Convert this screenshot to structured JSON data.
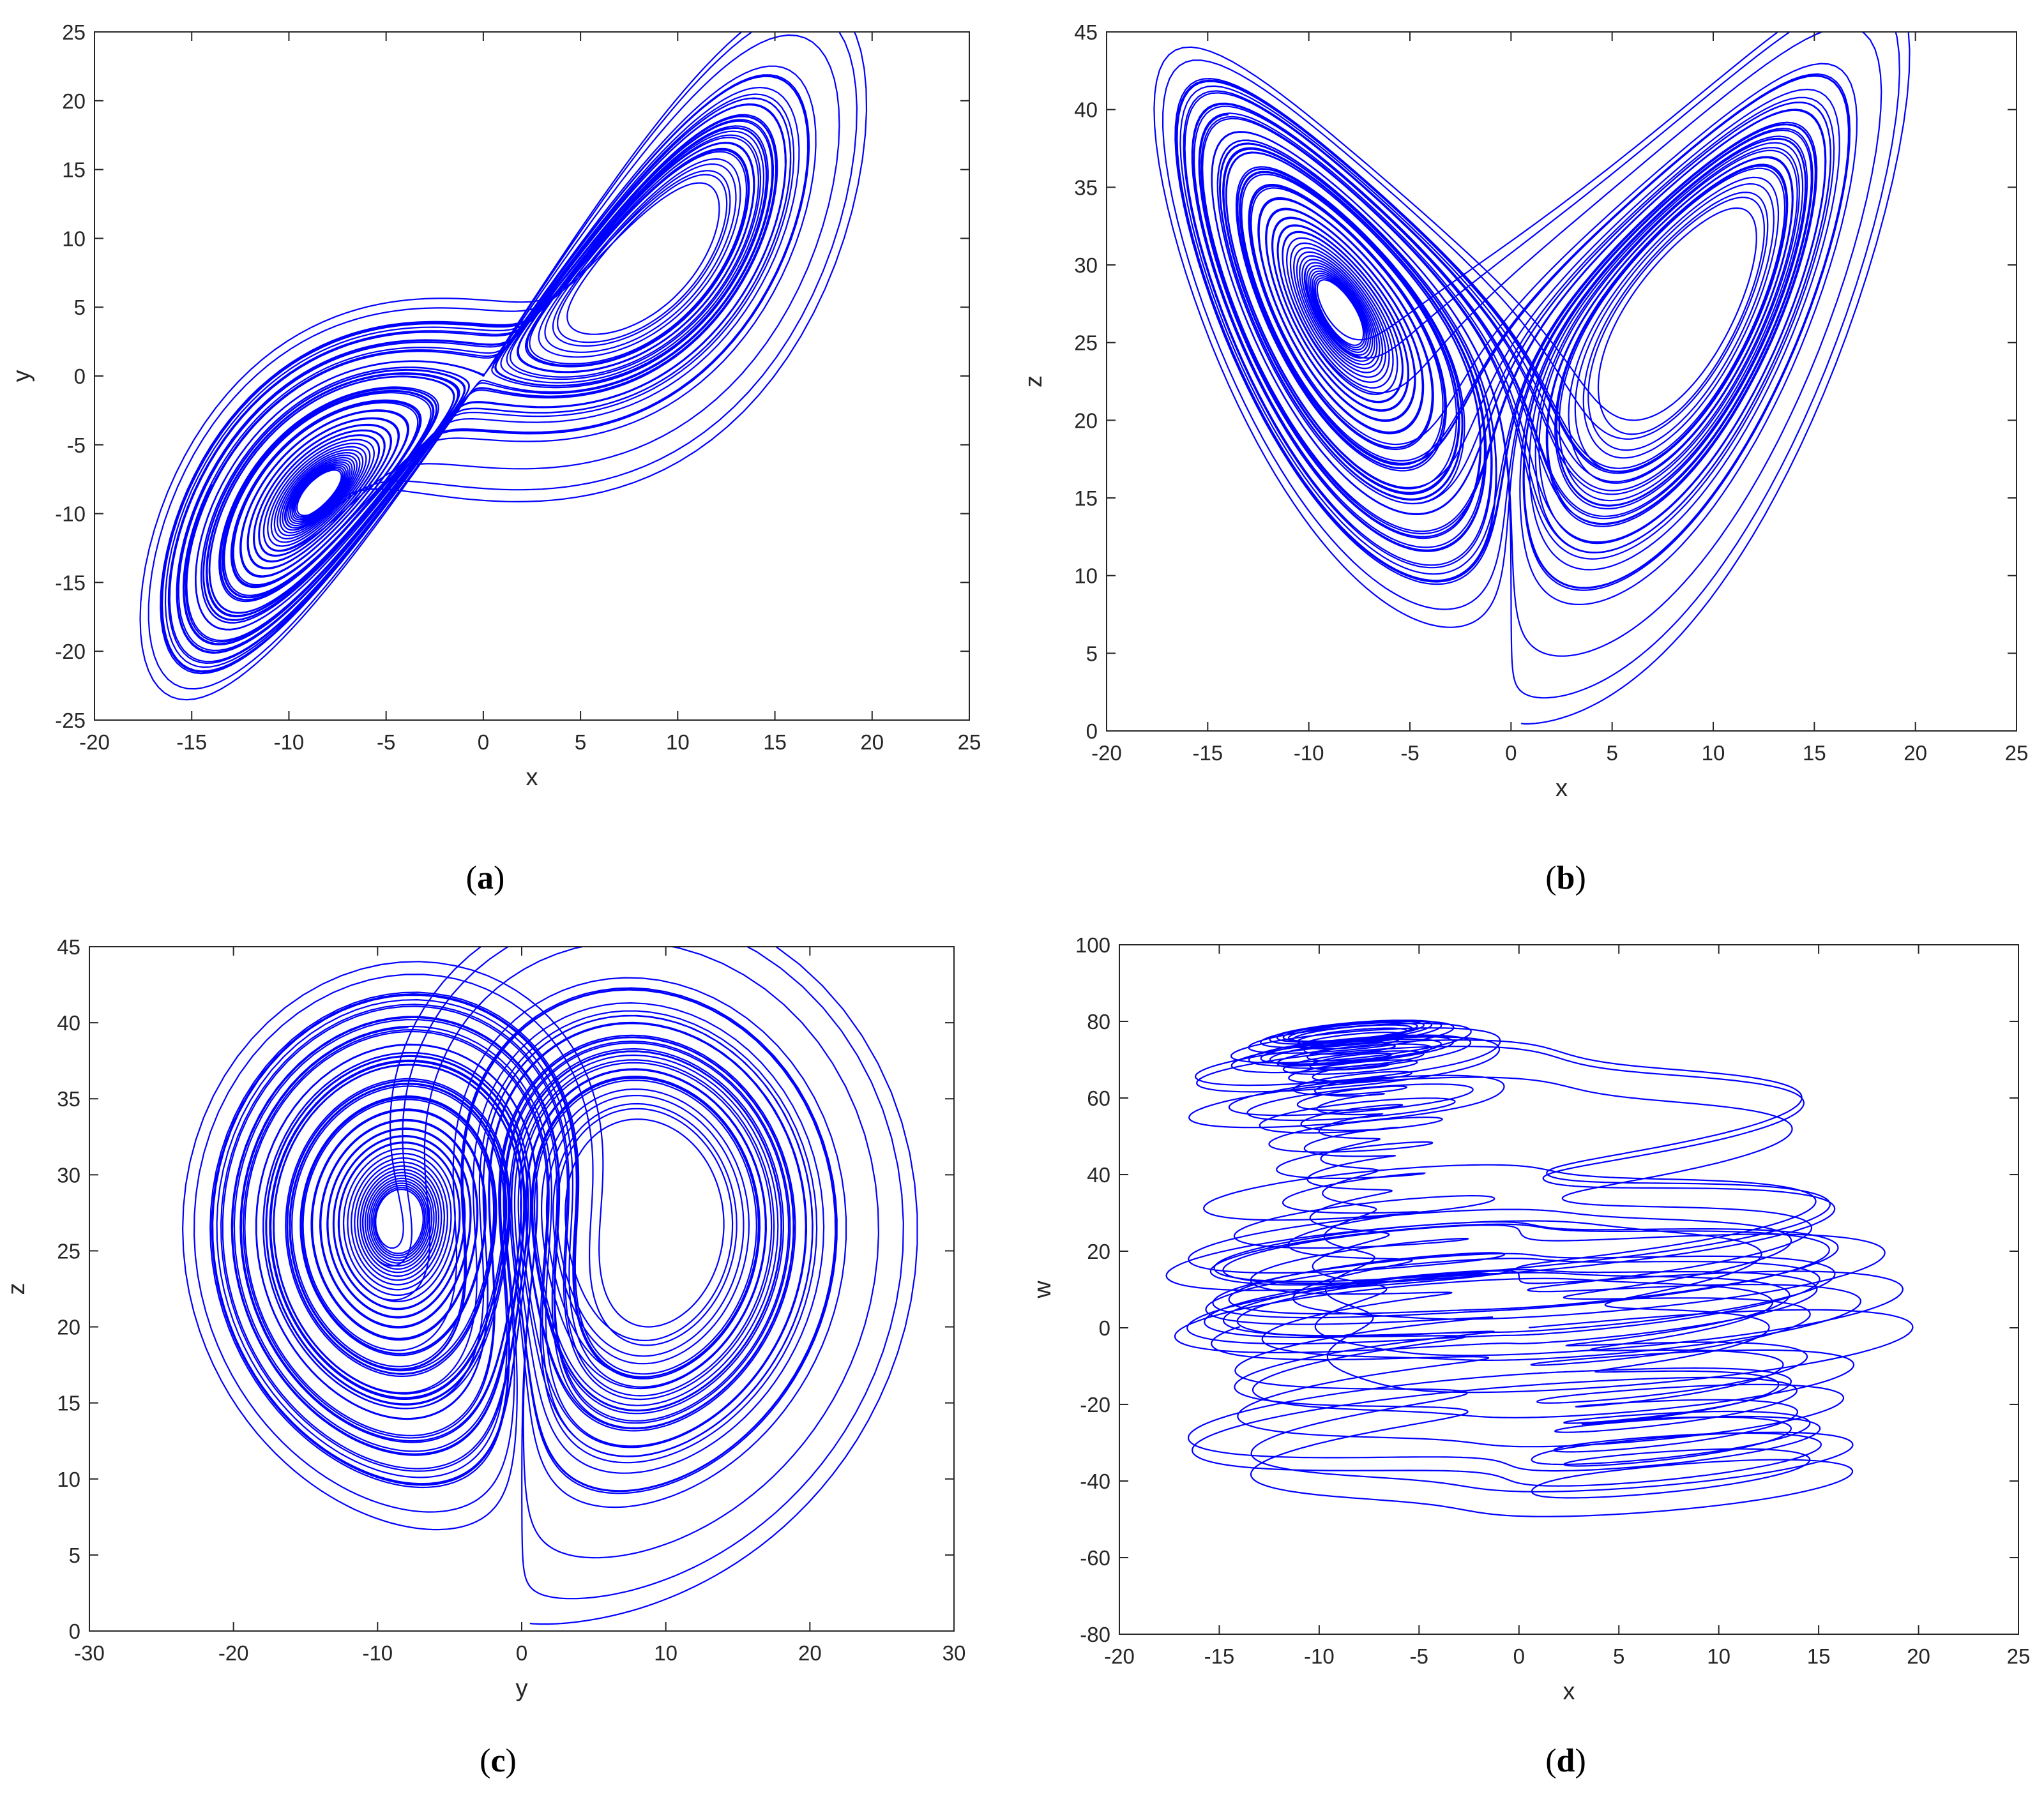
{
  "line_color": "#0000ff",
  "chart_data": [
    {
      "type": "line",
      "panel": "a",
      "xlabel": "x",
      "ylabel": "y",
      "xlim": [
        -20,
        25
      ],
      "ylim": [
        -25,
        25
      ],
      "xticks": [
        -20,
        -15,
        -10,
        -5,
        0,
        5,
        10,
        15,
        20,
        25
      ],
      "yticks": [
        -25,
        -20,
        -15,
        -10,
        -5,
        0,
        5,
        10,
        15,
        20,
        25
      ],
      "xtick_labels": [
        "-20",
        "-15",
        "-10",
        "-5",
        "0",
        "5",
        "10",
        "15",
        "20",
        "25"
      ],
      "ytick_labels": [
        "-25",
        "-20",
        "-15",
        "-10",
        "-5",
        "0",
        "5",
        "10",
        "15",
        "20",
        "25"
      ],
      "grid": false,
      "series_axes": [
        "x",
        "y"
      ]
    },
    {
      "type": "line",
      "panel": "b",
      "xlabel": "x",
      "ylabel": "z",
      "xlim": [
        -20,
        25
      ],
      "ylim": [
        0,
        45
      ],
      "xticks": [
        -20,
        -15,
        -10,
        -5,
        0,
        5,
        10,
        15,
        20,
        25
      ],
      "yticks": [
        0,
        5,
        10,
        15,
        20,
        25,
        30,
        35,
        40,
        45
      ],
      "xtick_labels": [
        "-20",
        "-15",
        "-10",
        "-5",
        "0",
        "5",
        "10",
        "15",
        "20",
        "25"
      ],
      "ytick_labels": [
        "0",
        "5",
        "10",
        "15",
        "20",
        "25",
        "30",
        "35",
        "40",
        "45"
      ],
      "grid": false,
      "series_axes": [
        "x",
        "z"
      ]
    },
    {
      "type": "line",
      "panel": "c",
      "xlabel": "y",
      "ylabel": "z",
      "xlim": [
        -30,
        30
      ],
      "ylim": [
        0,
        45
      ],
      "xticks": [
        -30,
        -20,
        -10,
        0,
        10,
        20,
        30
      ],
      "yticks": [
        0,
        5,
        10,
        15,
        20,
        25,
        30,
        35,
        40,
        45
      ],
      "xtick_labels": [
        "-30",
        "-20",
        "-10",
        "0",
        "10",
        "20",
        "30"
      ],
      "ytick_labels": [
        "0",
        "5",
        "10",
        "15",
        "20",
        "25",
        "30",
        "35",
        "40",
        "45"
      ],
      "grid": false,
      "series_axes": [
        "y",
        "z"
      ]
    },
    {
      "type": "line",
      "panel": "d",
      "xlabel": "x",
      "ylabel": "w",
      "xlim": [
        -20,
        25
      ],
      "ylim": [
        -80,
        100
      ],
      "xticks": [
        -20,
        -15,
        -10,
        -5,
        0,
        5,
        10,
        15,
        20,
        25
      ],
      "yticks": [
        -80,
        -60,
        -40,
        -20,
        0,
        20,
        40,
        60,
        80,
        100
      ],
      "xtick_labels": [
        "-20",
        "-15",
        "-10",
        "-5",
        "0",
        "5",
        "10",
        "15",
        "20",
        "25"
      ],
      "ytick_labels": [
        "-80",
        "-60",
        "-40",
        "-20",
        "0",
        "20",
        "40",
        "60",
        "80",
        "100"
      ],
      "grid": false,
      "series_axes": [
        "x",
        "w"
      ]
    }
  ],
  "captions": [
    {
      "open": "(",
      "letter": "a",
      "close": ")"
    },
    {
      "open": "(",
      "letter": "b",
      "close": ")"
    },
    {
      "open": "(",
      "letter": "c",
      "close": ")"
    },
    {
      "open": "(",
      "letter": "d",
      "close": ")"
    }
  ]
}
